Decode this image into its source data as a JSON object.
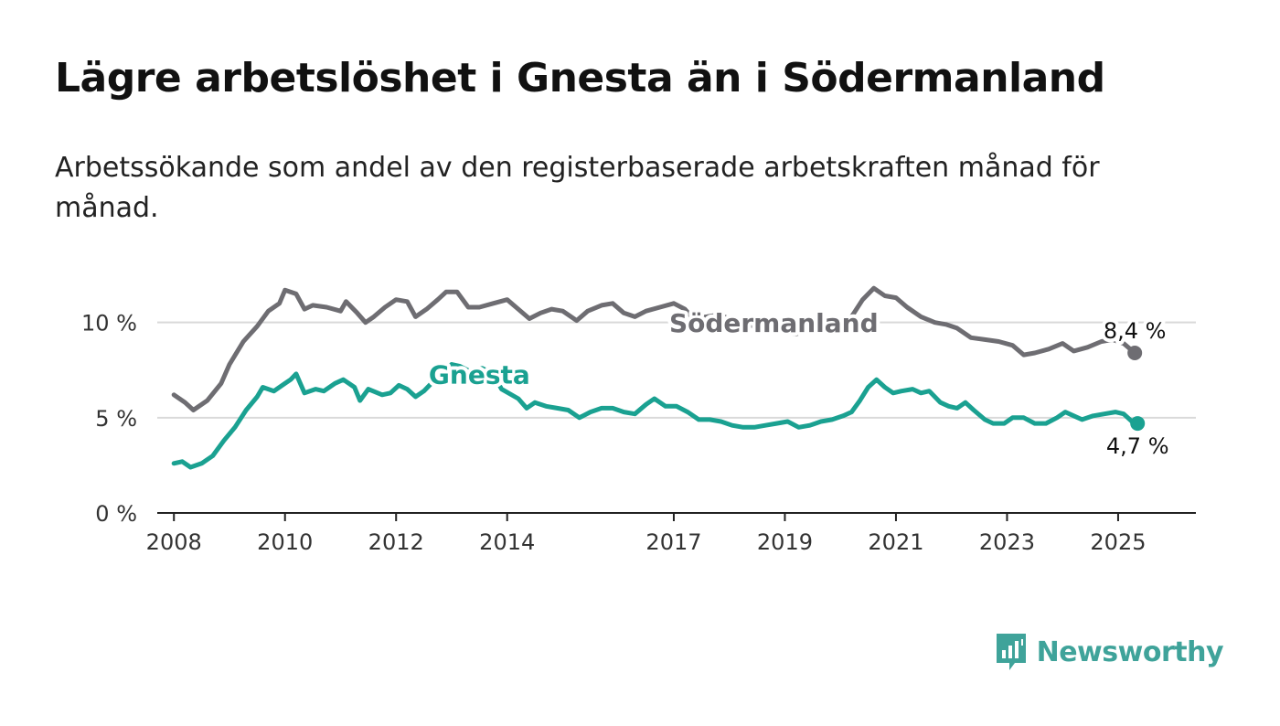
{
  "title": "Lägre arbetslöshet i Gnesta än i Södermanland",
  "subtitle": "Arbetssökande som andel av den registerbaserade arbetskraften månad för månad.",
  "brand": {
    "name": "Newsworthy",
    "color": "#3fa39a"
  },
  "chart_data": {
    "type": "line",
    "title": "Lägre arbetslöshet i Gnesta än i Södermanland",
    "subtitle": "Arbetssökande som andel av den registerbaserade arbetskraften månad för månad.",
    "ylim": [
      0,
      12
    ],
    "y_ticks": [
      0,
      5,
      10
    ],
    "y_tick_labels": [
      "0 %",
      "5 %",
      "10 %"
    ],
    "xlim": [
      2007.7,
      2026.4
    ],
    "x_ticks": [
      2008,
      2010,
      2012,
      2014,
      2017,
      2019,
      2021,
      2023,
      2025
    ],
    "x_tick_labels": [
      "2008",
      "2010",
      "2012",
      "2014",
      "2017",
      "2019",
      "2021",
      "2023",
      "2025"
    ],
    "grid": true,
    "legend": "direct labels on lines",
    "series": [
      {
        "name": "Södermanland",
        "color": "#6e6d72",
        "end_label": "8,4 %",
        "points": [
          [
            2008.0,
            6.2
          ],
          [
            2008.2,
            5.8
          ],
          [
            2008.35,
            5.4
          ],
          [
            2008.6,
            5.9
          ],
          [
            2008.85,
            6.8
          ],
          [
            2009.0,
            7.8
          ],
          [
            2009.25,
            9.0
          ],
          [
            2009.5,
            9.8
          ],
          [
            2009.7,
            10.6
          ],
          [
            2009.9,
            11.0
          ],
          [
            2010.0,
            11.7
          ],
          [
            2010.2,
            11.5
          ],
          [
            2010.35,
            10.7
          ],
          [
            2010.5,
            10.9
          ],
          [
            2010.75,
            10.8
          ],
          [
            2011.0,
            10.6
          ],
          [
            2011.1,
            11.1
          ],
          [
            2011.3,
            10.5
          ],
          [
            2011.45,
            10.0
          ],
          [
            2011.6,
            10.3
          ],
          [
            2011.8,
            10.8
          ],
          [
            2012.0,
            11.2
          ],
          [
            2012.2,
            11.1
          ],
          [
            2012.35,
            10.3
          ],
          [
            2012.55,
            10.7
          ],
          [
            2012.75,
            11.2
          ],
          [
            2012.9,
            11.6
          ],
          [
            2013.1,
            11.6
          ],
          [
            2013.3,
            10.8
          ],
          [
            2013.5,
            10.8
          ],
          [
            2013.75,
            11.0
          ],
          [
            2014.0,
            11.2
          ],
          [
            2014.2,
            10.7
          ],
          [
            2014.4,
            10.2
          ],
          [
            2014.6,
            10.5
          ],
          [
            2014.8,
            10.7
          ],
          [
            2015.0,
            10.6
          ],
          [
            2015.25,
            10.1
          ],
          [
            2015.45,
            10.6
          ],
          [
            2015.7,
            10.9
          ],
          [
            2015.9,
            11.0
          ],
          [
            2016.1,
            10.5
          ],
          [
            2016.3,
            10.3
          ],
          [
            2016.5,
            10.6
          ],
          [
            2016.75,
            10.8
          ],
          [
            2017.0,
            11.0
          ],
          [
            2017.2,
            10.7
          ],
          [
            2017.35,
            10.2
          ],
          [
            2017.6,
            10.3
          ],
          [
            2017.8,
            10.4
          ],
          [
            2018.2,
            10.0
          ],
          [
            2018.7,
            9.6
          ],
          [
            2019.2,
            9.4
          ],
          [
            2019.6,
            9.7
          ],
          [
            2019.9,
            10.1
          ],
          [
            2020.2,
            10.3
          ],
          [
            2020.4,
            11.2
          ],
          [
            2020.6,
            11.8
          ],
          [
            2020.8,
            11.4
          ],
          [
            2021.0,
            11.3
          ],
          [
            2021.2,
            10.8
          ],
          [
            2021.45,
            10.3
          ],
          [
            2021.7,
            10.0
          ],
          [
            2021.9,
            9.9
          ],
          [
            2022.1,
            9.7
          ],
          [
            2022.35,
            9.2
          ],
          [
            2022.6,
            9.1
          ],
          [
            2022.85,
            9.0
          ],
          [
            2023.1,
            8.8
          ],
          [
            2023.3,
            8.3
          ],
          [
            2023.5,
            8.4
          ],
          [
            2023.75,
            8.6
          ],
          [
            2024.0,
            8.9
          ],
          [
            2024.2,
            8.5
          ],
          [
            2024.45,
            8.7
          ],
          [
            2024.7,
            9.0
          ],
          [
            2024.9,
            9.1
          ],
          [
            2025.1,
            8.9
          ],
          [
            2025.3,
            8.4
          ]
        ]
      },
      {
        "name": "Gnesta",
        "color": "#1aa191",
        "end_label": "4,7 %",
        "points": [
          [
            2008.0,
            2.6
          ],
          [
            2008.15,
            2.7
          ],
          [
            2008.3,
            2.4
          ],
          [
            2008.5,
            2.6
          ],
          [
            2008.7,
            3.0
          ],
          [
            2008.9,
            3.8
          ],
          [
            2009.1,
            4.5
          ],
          [
            2009.3,
            5.4
          ],
          [
            2009.5,
            6.1
          ],
          [
            2009.6,
            6.6
          ],
          [
            2009.8,
            6.4
          ],
          [
            2010.0,
            6.8
          ],
          [
            2010.1,
            7.0
          ],
          [
            2010.2,
            7.3
          ],
          [
            2010.35,
            6.3
          ],
          [
            2010.55,
            6.5
          ],
          [
            2010.7,
            6.4
          ],
          [
            2010.9,
            6.8
          ],
          [
            2011.05,
            7.0
          ],
          [
            2011.25,
            6.6
          ],
          [
            2011.35,
            5.9
          ],
          [
            2011.5,
            6.5
          ],
          [
            2011.75,
            6.2
          ],
          [
            2011.9,
            6.3
          ],
          [
            2012.05,
            6.7
          ],
          [
            2012.2,
            6.5
          ],
          [
            2012.35,
            6.1
          ],
          [
            2012.5,
            6.4
          ],
          [
            2012.7,
            7.0
          ],
          [
            2012.85,
            7.4
          ],
          [
            2013.0,
            7.8
          ],
          [
            2013.15,
            7.7
          ],
          [
            2013.35,
            7.4
          ],
          [
            2013.55,
            7.6
          ],
          [
            2013.75,
            7.3
          ],
          [
            2013.9,
            6.5
          ],
          [
            2014.2,
            6.0
          ],
          [
            2014.35,
            5.5
          ],
          [
            2014.5,
            5.8
          ],
          [
            2014.7,
            5.6
          ],
          [
            2014.9,
            5.5
          ],
          [
            2015.1,
            5.4
          ],
          [
            2015.3,
            5.0
          ],
          [
            2015.5,
            5.3
          ],
          [
            2015.7,
            5.5
          ],
          [
            2015.9,
            5.5
          ],
          [
            2016.1,
            5.3
          ],
          [
            2016.3,
            5.2
          ],
          [
            2016.5,
            5.7
          ],
          [
            2016.65,
            6.0
          ],
          [
            2016.85,
            5.6
          ],
          [
            2017.05,
            5.6
          ],
          [
            2017.25,
            5.3
          ],
          [
            2017.45,
            4.9
          ],
          [
            2017.65,
            4.9
          ],
          [
            2017.85,
            4.8
          ],
          [
            2018.05,
            4.6
          ],
          [
            2018.25,
            4.5
          ],
          [
            2018.45,
            4.5
          ],
          [
            2018.65,
            4.6
          ],
          [
            2018.85,
            4.7
          ],
          [
            2019.05,
            4.8
          ],
          [
            2019.25,
            4.5
          ],
          [
            2019.45,
            4.6
          ],
          [
            2019.65,
            4.8
          ],
          [
            2019.85,
            4.9
          ],
          [
            2020.05,
            5.1
          ],
          [
            2020.2,
            5.3
          ],
          [
            2020.35,
            5.9
          ],
          [
            2020.5,
            6.6
          ],
          [
            2020.65,
            7.0
          ],
          [
            2020.8,
            6.6
          ],
          [
            2020.95,
            6.3
          ],
          [
            2021.1,
            6.4
          ],
          [
            2021.3,
            6.5
          ],
          [
            2021.45,
            6.3
          ],
          [
            2021.6,
            6.4
          ],
          [
            2021.8,
            5.8
          ],
          [
            2021.95,
            5.6
          ],
          [
            2022.1,
            5.5
          ],
          [
            2022.25,
            5.8
          ],
          [
            2022.4,
            5.4
          ],
          [
            2022.6,
            4.9
          ],
          [
            2022.75,
            4.7
          ],
          [
            2022.95,
            4.7
          ],
          [
            2023.1,
            5.0
          ],
          [
            2023.3,
            5.0
          ],
          [
            2023.5,
            4.7
          ],
          [
            2023.7,
            4.7
          ],
          [
            2023.9,
            5.0
          ],
          [
            2024.05,
            5.3
          ],
          [
            2024.2,
            5.1
          ],
          [
            2024.35,
            4.9
          ],
          [
            2024.55,
            5.1
          ],
          [
            2024.75,
            5.2
          ],
          [
            2024.95,
            5.3
          ],
          [
            2025.1,
            5.2
          ],
          [
            2025.25,
            4.8
          ],
          [
            2025.35,
            4.7
          ]
        ]
      }
    ],
    "annotations": [
      {
        "text": "Södermanland",
        "series": "Södermanland",
        "x": 2018.8,
        "y": 9.5
      },
      {
        "text": "Gnesta",
        "series": "Gnesta",
        "x": 2013.5,
        "y": 6.8
      }
    ]
  }
}
